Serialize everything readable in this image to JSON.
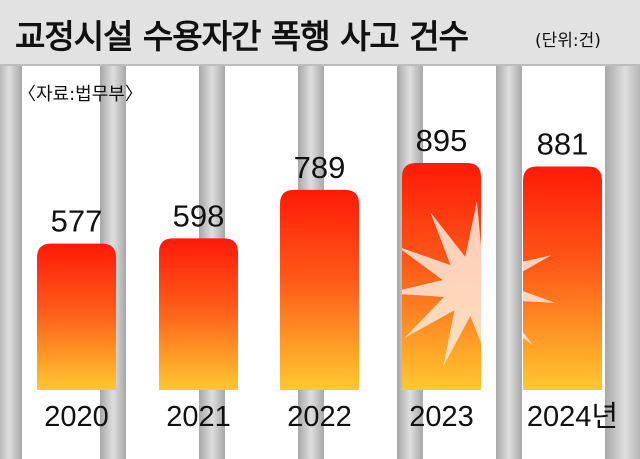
{
  "header": {
    "title": "교정시설 수용자간 폭행 사고 건수",
    "unit": "(단위:건)"
  },
  "source": "〈자료:법무부〉",
  "chart_data": {
    "type": "bar",
    "title": "교정시설 수용자간 폭행 사고 건수",
    "unit": "(단위:건)",
    "categories": [
      "2020",
      "2021",
      "2022",
      "2023",
      "2024년"
    ],
    "values": [
      577,
      598,
      789,
      895,
      881
    ],
    "ylim": [
      0,
      895
    ],
    "grid": false,
    "colors": {
      "bar_top": "#ff1a08",
      "bar_bottom": "#ffc830"
    }
  }
}
